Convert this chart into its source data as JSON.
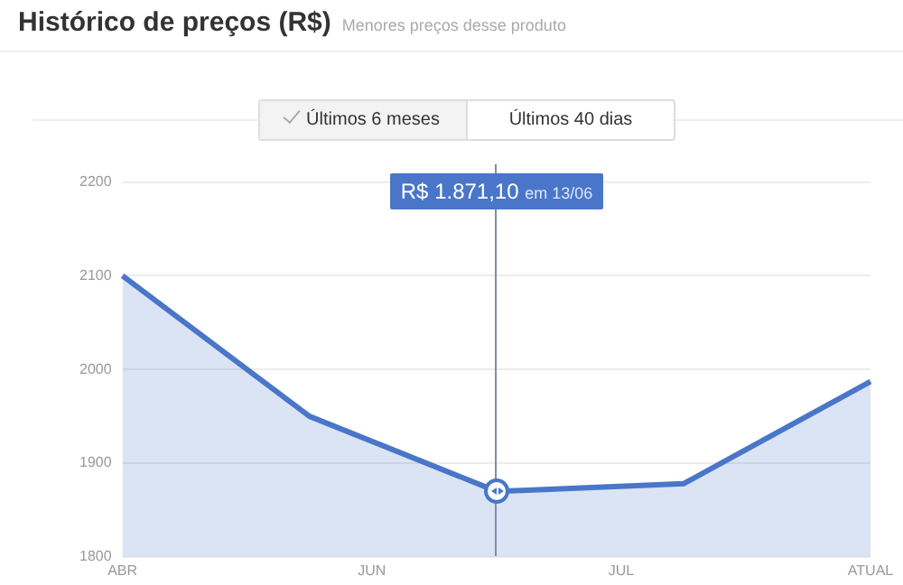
{
  "chart_data": {
    "type": "area",
    "title": "Histórico de preços (R$)",
    "subtitle": "Menores preços desse produto",
    "categories": [
      "ABR",
      null,
      null,
      null,
      null,
      null,
      null,
      null,
      "JUN",
      null,
      null,
      null,
      null,
      null,
      null,
      null,
      "JUL",
      null,
      null,
      null,
      null,
      null,
      null,
      null,
      "ATUAL"
    ],
    "series": [
      {
        "color": "#4a76c9",
        "values": [
          2100,
          null,
          null,
          null,
          null,
          null,
          1950,
          null,
          null,
          null,
          null,
          null,
          1870,
          1871,
          null,
          null,
          null,
          null,
          1878,
          null,
          null,
          null,
          null,
          null,
          1987
        ]
      }
    ],
    "ylim": [
      1800,
      2200
    ],
    "yticks": [
      1800,
      1900,
      2000,
      2100,
      2200
    ],
    "grid": "y",
    "legend": false,
    "marker": "none",
    "annotations": [
      "Últimos 6 meses",
      "Últimos 40 dias",
      "R$ 1.871,10 em 13/06"
    ]
  }
}
